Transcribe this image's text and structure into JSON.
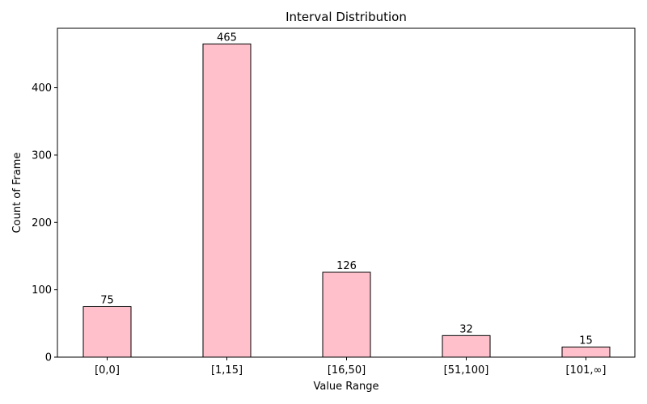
{
  "chart_data": {
    "type": "bar",
    "title": "Interval Distribution",
    "xlabel": "Value Range",
    "ylabel": "Count of Frame",
    "categories": [
      "[0,0]",
      "[1,15]",
      "[16,50]",
      "[51,100]",
      "[101,∞]"
    ],
    "values": [
      75,
      465,
      126,
      32,
      15
    ],
    "value_labels": [
      "75",
      "465",
      "126",
      "32",
      "15"
    ],
    "yticks": [
      0,
      100,
      200,
      300,
      400
    ],
    "ytick_labels": [
      "0",
      "100",
      "200",
      "300",
      "400"
    ],
    "ylim": [
      0,
      488.25
    ],
    "grid": false,
    "colors": {
      "bar_fill": "#ffc0cb",
      "bar_edge": "#000000"
    }
  }
}
